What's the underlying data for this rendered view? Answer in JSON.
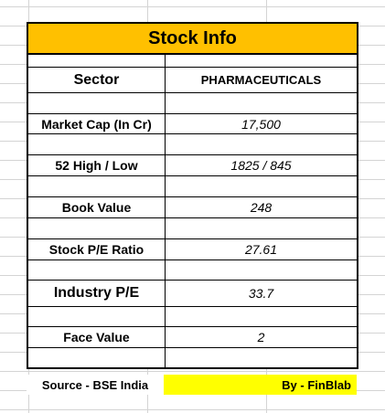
{
  "title": "Stock Info",
  "rows": [
    {
      "label": "Sector",
      "value": "PHARMACEUTICALS"
    },
    {
      "label": "Market Cap (In Cr)",
      "value": "17,500"
    },
    {
      "label": "52 High / Low",
      "value": "1825 / 845"
    },
    {
      "label": "Book Value",
      "value": "248"
    },
    {
      "label": "Stock P/E Ratio",
      "value": "27.61"
    },
    {
      "label": "Industry P/E",
      "value": "33.7"
    },
    {
      "label": "Face Value",
      "value": "2"
    }
  ],
  "footer": {
    "source": "Source - BSE India",
    "by": "By - FinBlab"
  },
  "colors": {
    "title_bg": "#ffc000",
    "footer_highlight": "#ffff00"
  }
}
